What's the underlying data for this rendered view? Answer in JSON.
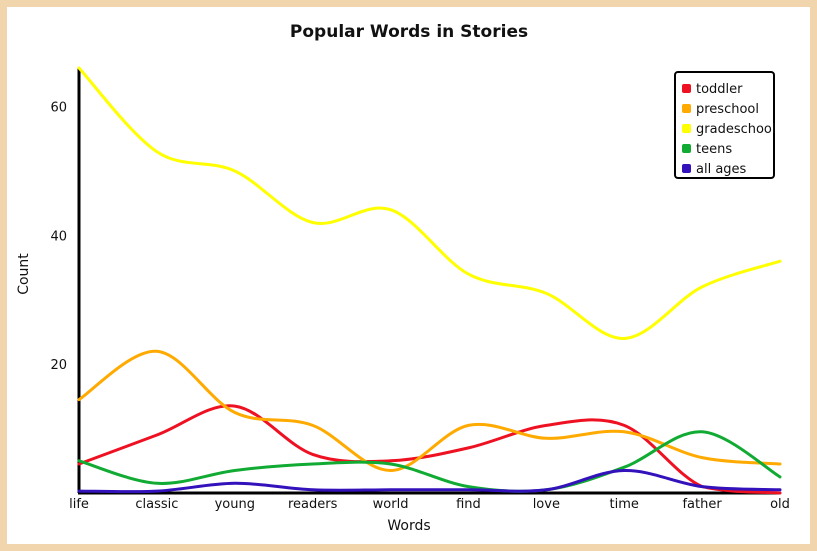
{
  "chart_data": {
    "type": "line",
    "title": "Popular Words in Stories",
    "xlabel": "Words",
    "ylabel": "Count",
    "categories": [
      "life",
      "classic",
      "young",
      "readers",
      "world",
      "find",
      "love",
      "time",
      "father",
      "old"
    ],
    "ylim": [
      0,
      66
    ],
    "yticks": [
      20,
      40,
      60
    ],
    "legend_position": "top-right",
    "series": [
      {
        "name": "toddler",
        "color": "#ee1122",
        "values": [
          4.5,
          9,
          13.5,
          6,
          5,
          7,
          10.5,
          10.5,
          1,
          0
        ]
      },
      {
        "name": "preschool",
        "color": "#ffaa00",
        "values": [
          14.5,
          22,
          12.5,
          10.5,
          3.5,
          10.5,
          8.5,
          9.5,
          5.5,
          4.5
        ]
      },
      {
        "name": "gradeschool",
        "color": "#ffff00",
        "values": [
          66,
          53,
          50,
          42,
          44,
          34,
          31,
          24,
          32,
          36
        ]
      },
      {
        "name": "teens",
        "color": "#11aa33",
        "values": [
          5,
          1.5,
          3.5,
          4.5,
          4.5,
          1,
          0.5,
          4,
          9.5,
          2.5
        ]
      },
      {
        "name": "all ages",
        "color": "#3311bb",
        "values": [
          0.3,
          0.3,
          1.5,
          0.5,
          0.5,
          0.5,
          0.5,
          3.5,
          1,
          0.5
        ]
      }
    ]
  }
}
